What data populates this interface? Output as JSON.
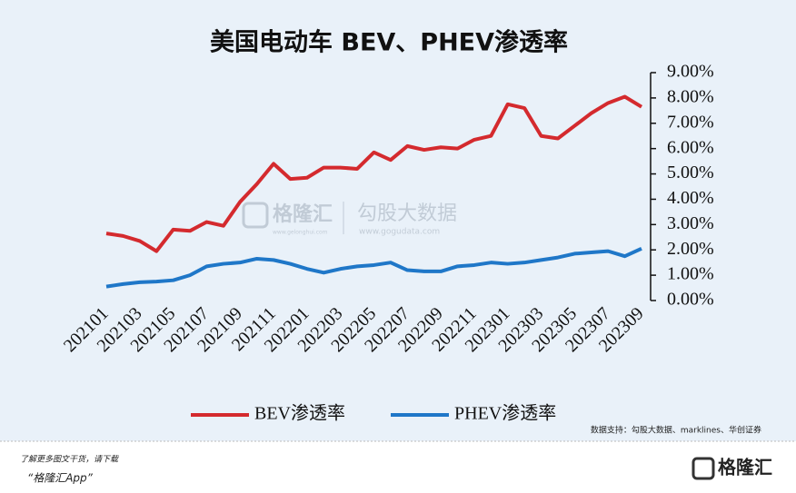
{
  "chart_data": {
    "type": "line",
    "title": "美国电动车 BEV、PHEV渗透率",
    "categories": [
      "202101",
      null,
      "202103",
      null,
      "202105",
      null,
      "202107",
      null,
      "202109",
      null,
      "202111",
      null,
      "202201",
      null,
      "202203",
      null,
      "202205",
      null,
      "202207",
      null,
      "202209",
      null,
      "202211",
      null,
      "202301",
      null,
      "202303",
      null,
      "202305",
      null,
      "202307",
      null,
      "202309"
    ],
    "series": [
      {
        "name": "BEV渗透率",
        "color": "#d42a2e",
        "values": [
          2.65,
          2.55,
          2.35,
          1.95,
          2.8,
          2.75,
          3.1,
          2.95,
          3.9,
          4.6,
          5.4,
          4.8,
          4.85,
          5.25,
          5.25,
          5.2,
          5.85,
          5.55,
          6.1,
          5.95,
          6.05,
          6.0,
          6.35,
          6.5,
          7.75,
          7.6,
          6.5,
          6.4,
          6.9,
          7.4,
          7.8,
          8.05,
          7.65
        ]
      },
      {
        "name": "PHEV渗透率",
        "color": "#1f77c8",
        "values": [
          0.55,
          0.65,
          0.72,
          0.75,
          0.8,
          1.0,
          1.35,
          1.45,
          1.5,
          1.65,
          1.6,
          1.45,
          1.25,
          1.1,
          1.25,
          1.35,
          1.4,
          1.5,
          1.2,
          1.15,
          1.15,
          1.35,
          1.4,
          1.5,
          1.45,
          1.5,
          1.6,
          1.7,
          1.85,
          1.9,
          1.95,
          1.75,
          2.05
        ]
      }
    ],
    "ylim": [
      0,
      9
    ],
    "yticks": [
      {
        "value": 0,
        "label": "0.00%"
      },
      {
        "value": 1,
        "label": "1.00%"
      },
      {
        "value": 2,
        "label": "2.00%"
      },
      {
        "value": 3,
        "label": "3.00%"
      },
      {
        "value": 4,
        "label": "4.00%"
      },
      {
        "value": 5,
        "label": "5.00%"
      },
      {
        "value": 6,
        "label": "6.00%"
      },
      {
        "value": 7,
        "label": "7.00%"
      },
      {
        "value": 8,
        "label": "8.00%"
      },
      {
        "value": 9,
        "label": "9.00%"
      }
    ],
    "source": "数据支持：勾股大数据、marklines、华创证券"
  },
  "watermark": {
    "brand": "格隆汇",
    "brand_url": "www.gelonghui.com",
    "name": "勾股大数据",
    "url": "www.gogudata.com"
  },
  "footer": {
    "note": "了解更多图文干货，请下载",
    "app": "“格隆汇App”",
    "logo": "格隆汇"
  }
}
